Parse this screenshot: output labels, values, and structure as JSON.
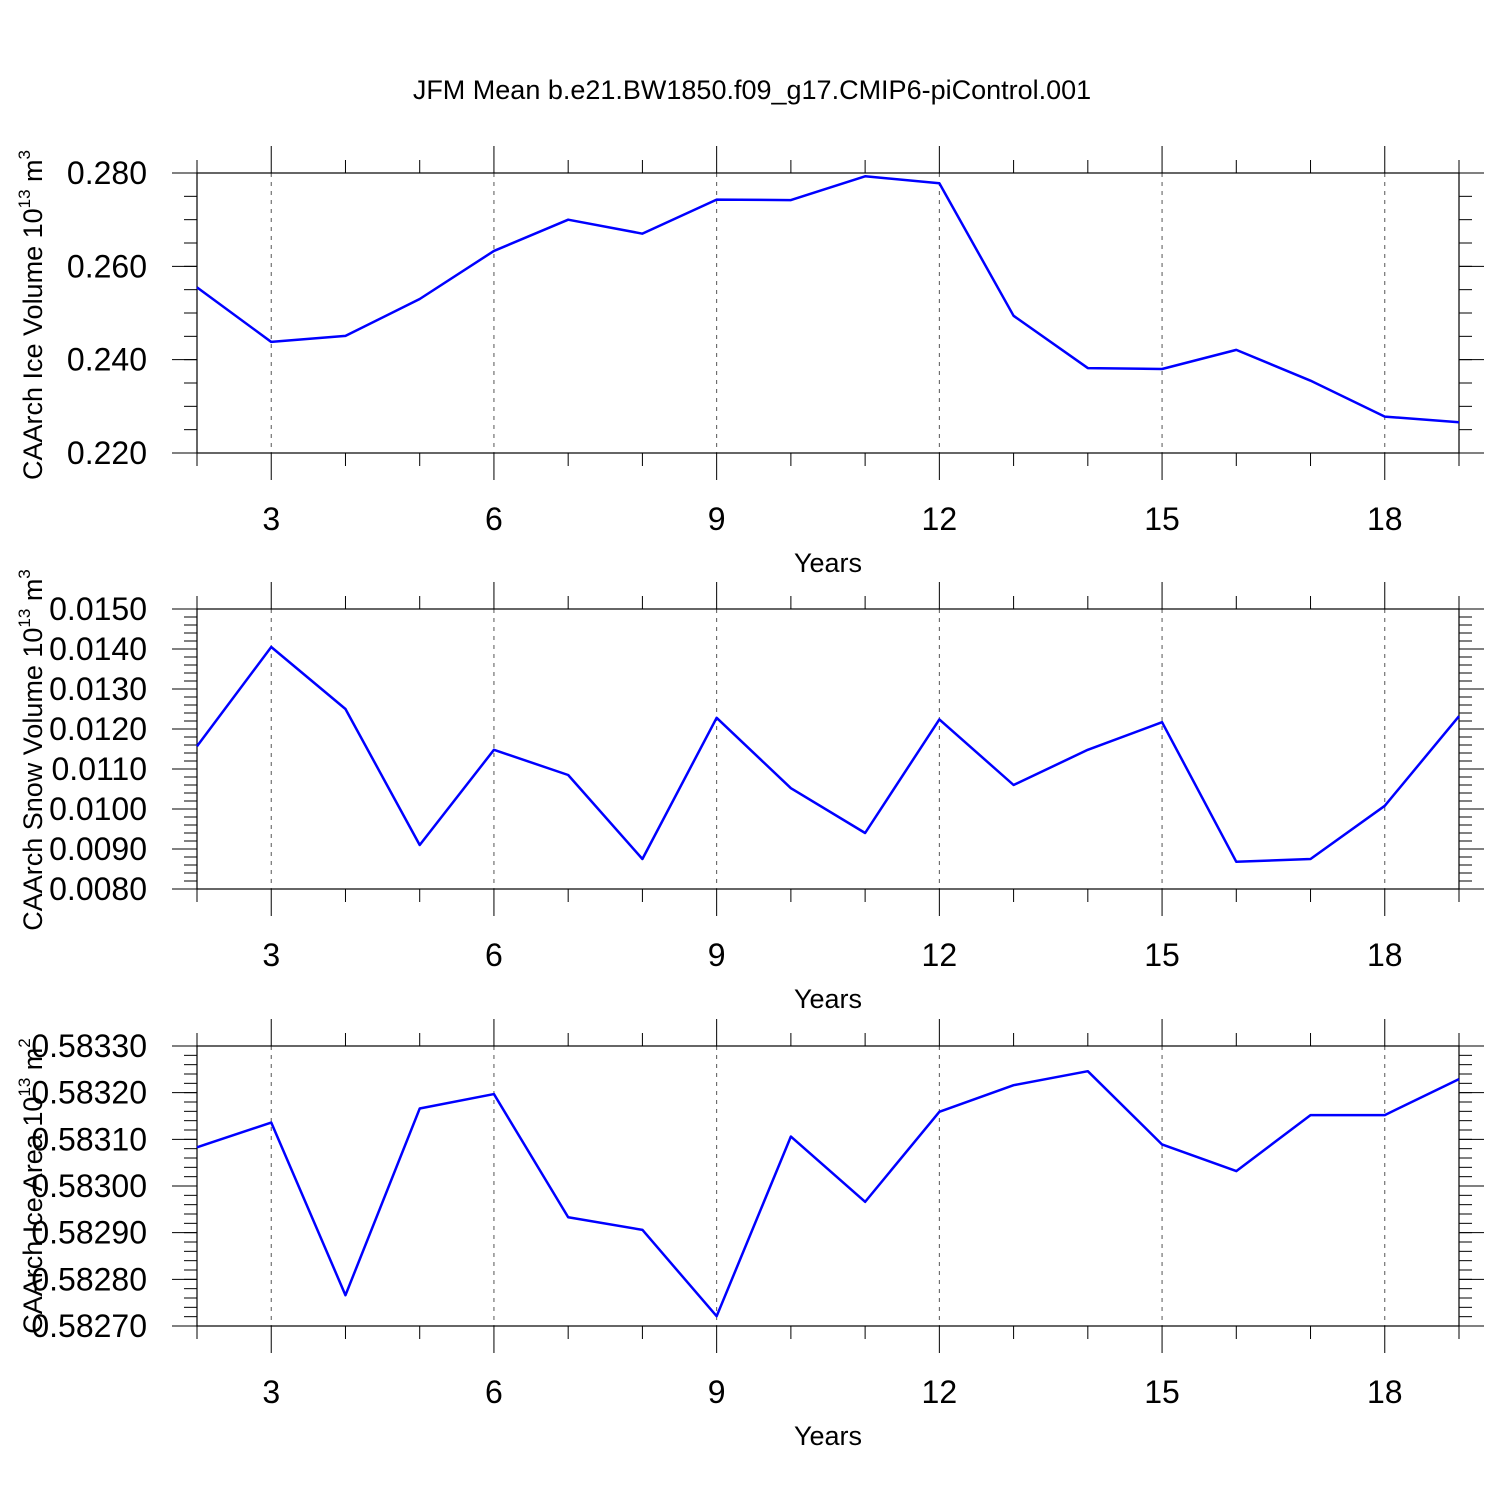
{
  "figure": {
    "title": "JFM Mean b.e21.BW1850.f09_g17.CMIP6-piControl.001",
    "line_color": "#0000ff"
  },
  "chart_data": [
    {
      "type": "line",
      "title": "",
      "xlabel": "Years",
      "ylabel": "CAArch Ice Volume 10",
      "ylabel_sup": "13",
      "ylabel_unit": " m",
      "ylabel_unit_sup": "3",
      "xlim": [
        2,
        19
      ],
      "ylim": [
        0.22,
        0.28
      ],
      "x_ticks": [
        3,
        6,
        9,
        12,
        15,
        18
      ],
      "y_ticks": [
        0.22,
        0.24,
        0.26,
        0.28
      ],
      "y_tick_labels": [
        "0.220",
        "0.240",
        "0.260",
        "0.280"
      ],
      "y_minor_step": 0.005,
      "grid": "vertical dashed at major x ticks",
      "x": [
        2,
        3,
        4,
        5,
        6,
        7,
        8,
        9,
        10,
        11,
        12,
        13,
        14,
        15,
        16,
        17,
        18,
        19
      ],
      "series": [
        {
          "values": [
            0.2555,
            0.2438,
            0.2451,
            0.253,
            0.2633,
            0.27,
            0.267,
            0.2743,
            0.2742,
            0.2793,
            0.2778,
            0.2494,
            0.2382,
            0.238,
            0.2421,
            0.2355,
            0.2278,
            0.2266
          ]
        }
      ]
    },
    {
      "type": "line",
      "title": "",
      "xlabel": "Years",
      "ylabel": "CAArch Snow Volume 10",
      "ylabel_sup": "13",
      "ylabel_unit": " m",
      "ylabel_unit_sup": "3",
      "xlim": [
        2,
        19
      ],
      "ylim": [
        0.008,
        0.015
      ],
      "x_ticks": [
        3,
        6,
        9,
        12,
        15,
        18
      ],
      "y_ticks": [
        0.008,
        0.009,
        0.01,
        0.011,
        0.012,
        0.013,
        0.014,
        0.015
      ],
      "y_tick_labels": [
        "0.0080",
        "0.0090",
        "0.0100",
        "0.0110",
        "0.0120",
        "0.0130",
        "0.0140",
        "0.0150"
      ],
      "y_minor_step": 0.0002,
      "grid": "vertical dashed at major x ticks",
      "x": [
        2,
        3,
        4,
        5,
        6,
        7,
        8,
        9,
        10,
        11,
        12,
        13,
        14,
        15,
        16,
        17,
        18,
        19
      ],
      "series": [
        {
          "values": [
            0.01157,
            0.01405,
            0.0125,
            0.0091,
            0.01148,
            0.01085,
            0.00875,
            0.01228,
            0.01052,
            0.0094,
            0.01224,
            0.0106,
            0.01148,
            0.01217,
            0.00868,
            0.00875,
            0.01008,
            0.01232
          ]
        }
      ]
    },
    {
      "type": "line",
      "title": "",
      "xlabel": "Years",
      "ylabel": "CAArch Ice Area 10",
      "ylabel_sup": "13",
      "ylabel_unit": " m",
      "ylabel_unit_sup": "2",
      "xlim": [
        2,
        19
      ],
      "ylim": [
        0.5827,
        0.5833
      ],
      "x_ticks": [
        3,
        6,
        9,
        12,
        15,
        18
      ],
      "y_ticks": [
        0.5827,
        0.5828,
        0.5829,
        0.583,
        0.5831,
        0.5832,
        0.5833
      ],
      "y_tick_labels": [
        "0.58270",
        "0.58280",
        "0.58290",
        "0.58300",
        "0.58310",
        "0.58320",
        "0.58330"
      ],
      "y_minor_step": 2e-05,
      "grid": "vertical dashed at major x ticks",
      "x": [
        2,
        3,
        4,
        5,
        6,
        7,
        8,
        9,
        10,
        11,
        12,
        13,
        14,
        15,
        16,
        17,
        18,
        19
      ],
      "series": [
        {
          "values": [
            0.583083,
            0.583136,
            0.582766,
            0.583166,
            0.583197,
            0.582933,
            0.582906,
            0.582721,
            0.583106,
            0.582966,
            0.583159,
            0.583216,
            0.583246,
            0.583089,
            0.583032,
            0.583152,
            0.583152,
            0.583229
          ]
        }
      ]
    }
  ]
}
